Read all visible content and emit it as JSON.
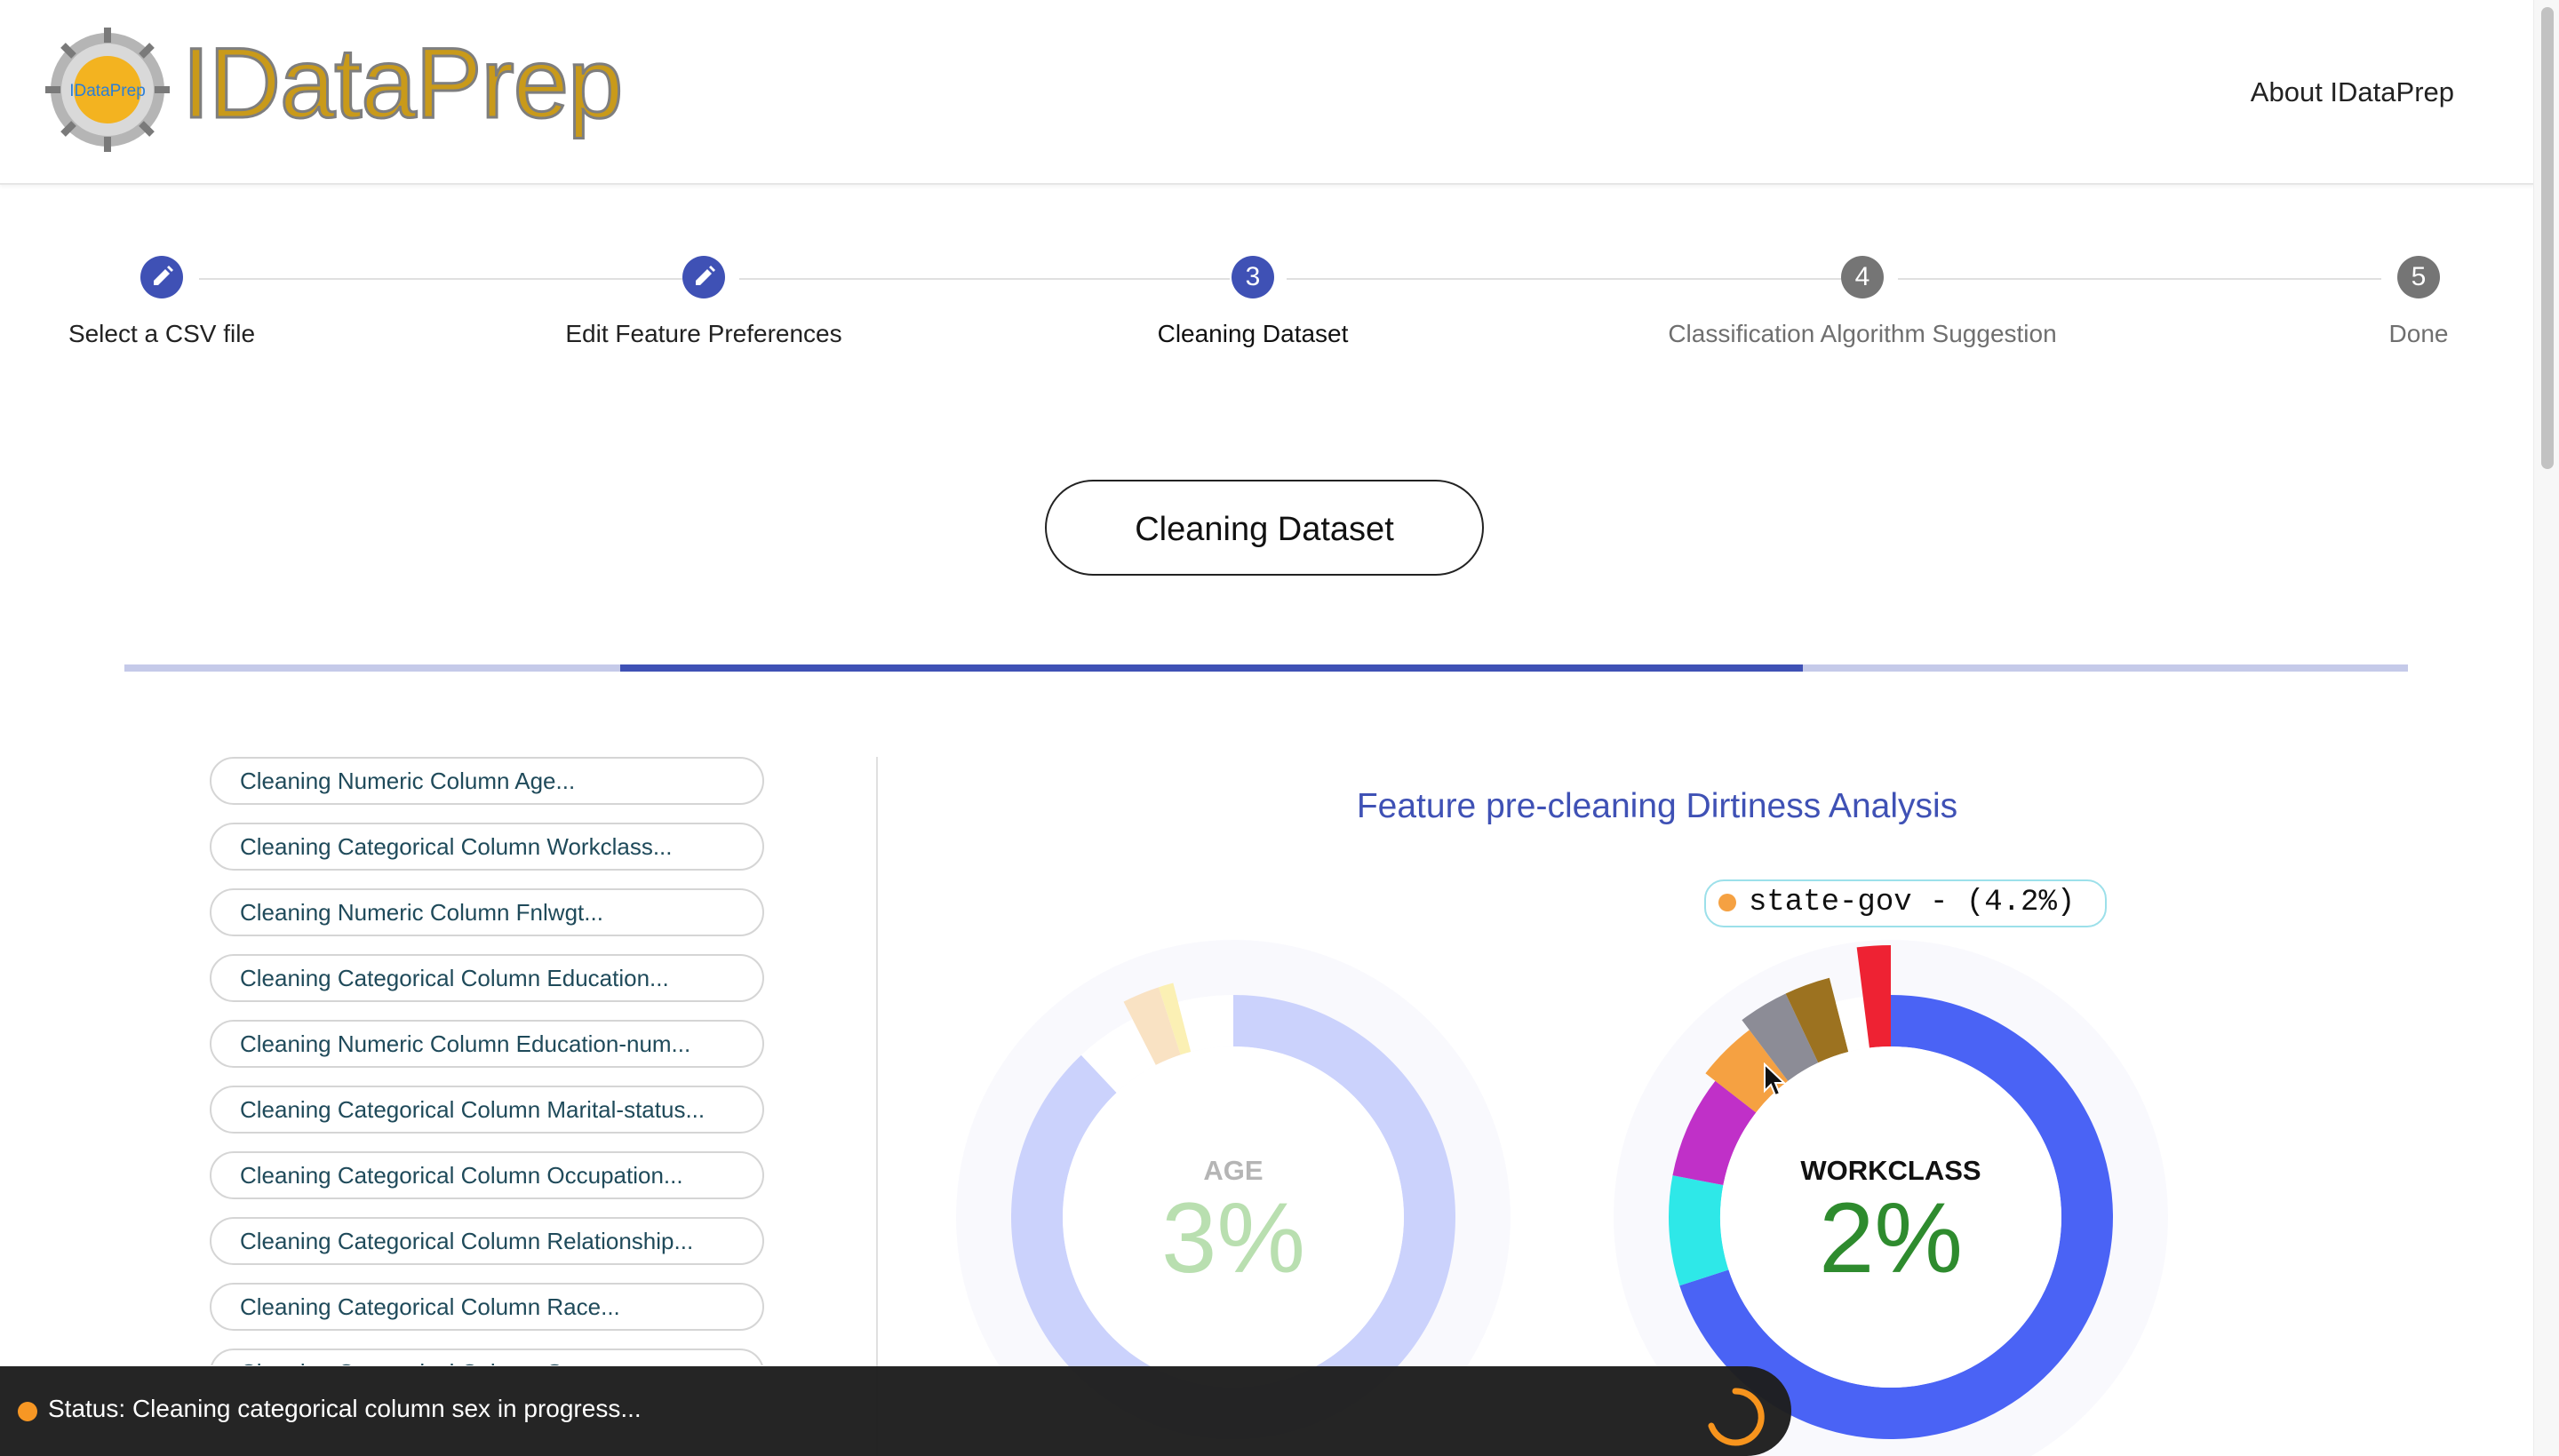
{
  "header": {
    "brand": "IDataPrep",
    "logo_text": "IDataPrep",
    "about_link": "About IDataPrep"
  },
  "stepper": {
    "steps": [
      {
        "number": "1",
        "label": "Select a CSV file",
        "state": "done",
        "icon": "pencil-icon"
      },
      {
        "number": "2",
        "label": "Edit Feature Preferences",
        "state": "done",
        "icon": "pencil-icon"
      },
      {
        "number": "3",
        "label": "Cleaning Dataset",
        "state": "active"
      },
      {
        "number": "4",
        "label": "Classification Algorithm Suggestion",
        "state": "pending"
      },
      {
        "number": "5",
        "label": "Done",
        "state": "pending"
      }
    ]
  },
  "main_button": "Cleaning Dataset",
  "progress": {
    "start_fraction": 0.217,
    "end_fraction": 0.735
  },
  "tasks": [
    "Cleaning Numeric Column Age...",
    "Cleaning Categorical Column Workclass...",
    "Cleaning Numeric Column Fnlwgt...",
    "Cleaning Categorical Column Education...",
    "Cleaning Numeric Column Education-num...",
    "Cleaning Categorical Column Marital-status...",
    "Cleaning Categorical Column Occupation...",
    "Cleaning Categorical Column Relationship...",
    "Cleaning Categorical Column Race...",
    "Cleaning Categorical Column Sex..."
  ],
  "chart_title": "Feature pre-cleaning Dirtiness Analysis",
  "tooltip": "state-gov - (4.2%)",
  "colors": {
    "accent": "#3f51b5",
    "pending": "#757575",
    "status_dot": "#f7941d"
  },
  "chart_data": {
    "type": "pie",
    "title": "Feature pre-cleaning Dirtiness Analysis",
    "charts": [
      {
        "name": "AGE",
        "dirty_percent": "3%",
        "faded": true,
        "slices": [
          {
            "value": 88.0,
            "color": "#c8d0fc"
          },
          {
            "value": 4.5,
            "color": "#ffffff"
          },
          {
            "value": 2.5,
            "color": "#f9e0c0"
          },
          {
            "value": 1.0,
            "color": "#fbefb0"
          },
          {
            "value": 4.0,
            "color": "#ffffff"
          }
        ]
      },
      {
        "name": "WORKCLASS",
        "dirty_percent": "2%",
        "faded": false,
        "slices": [
          {
            "value": 70.0,
            "color": "#4a63f5"
          },
          {
            "value": 8.0,
            "color": "#2ee8e8"
          },
          {
            "value": 7.5,
            "color": "#c030c8"
          },
          {
            "value": 4.2,
            "color": "#f5a142",
            "label": "state-gov"
          },
          {
            "value": 3.3,
            "color": "#8c8c96"
          },
          {
            "value": 3.0,
            "color": "#9c7220"
          },
          {
            "value": 2.0,
            "color": "#ffffff"
          },
          {
            "value": 2.0,
            "color": "#ee2233"
          }
        ]
      }
    ]
  },
  "status": {
    "text": "Status: Cleaning categorical column sex in progress..."
  }
}
